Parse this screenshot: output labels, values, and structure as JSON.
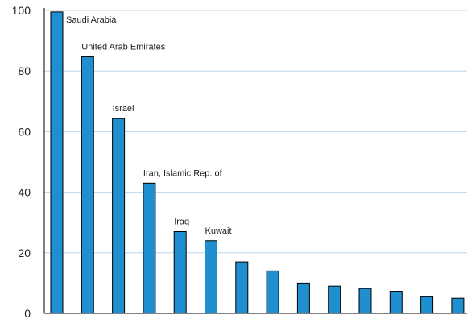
{
  "chart_data": {
    "type": "bar",
    "title": "",
    "xlabel": "",
    "ylabel": "",
    "ylim": [
      0,
      100
    ],
    "yticks": [
      0,
      20,
      40,
      60,
      80,
      100
    ],
    "grid": "horizontal",
    "bar_color": "#1f8fcf",
    "grid_color": "#bcd6e8",
    "categories": [
      "Saudi Arabia",
      "United Arab Emirates",
      "Israel",
      "Iran, Islamic Rep. of",
      "Iraq",
      "Kuwait",
      "",
      "",
      "",
      "",
      "",
      "",
      "",
      ""
    ],
    "values": [
      99.5,
      84.7,
      64.3,
      43.0,
      27.0,
      24.0,
      17.0,
      14.0,
      10.0,
      9.0,
      8.2,
      7.3,
      5.5,
      5.0
    ]
  }
}
